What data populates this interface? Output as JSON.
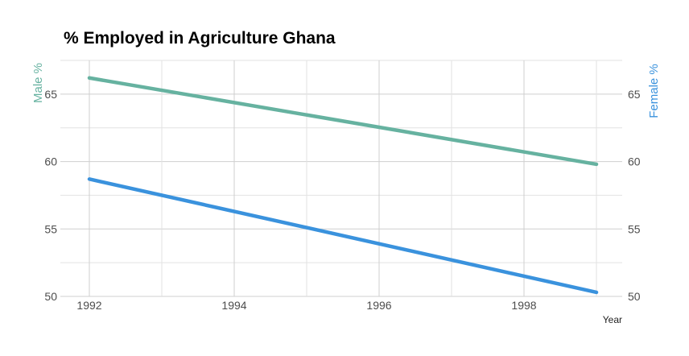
{
  "chart_data": {
    "type": "line",
    "title": "% Employed in Agriculture Ghana",
    "xlabel": "Year",
    "ylabel_left": "Male %",
    "ylabel_right": "Female %",
    "x": [
      1992,
      1999
    ],
    "xlim": [
      1992,
      1999
    ],
    "xticks": [
      1992,
      1994,
      1996,
      1998
    ],
    "ylim": [
      50,
      67.5
    ],
    "yticks": [
      50,
      55,
      60,
      65
    ],
    "grid": true,
    "series": [
      {
        "name": "Male %",
        "axis": "left",
        "color": "#66b2a0",
        "values": [
          66.2,
          59.8
        ]
      },
      {
        "name": "Female %",
        "axis": "right",
        "color": "#3a92dd",
        "values": [
          58.7,
          50.3
        ]
      }
    ]
  }
}
